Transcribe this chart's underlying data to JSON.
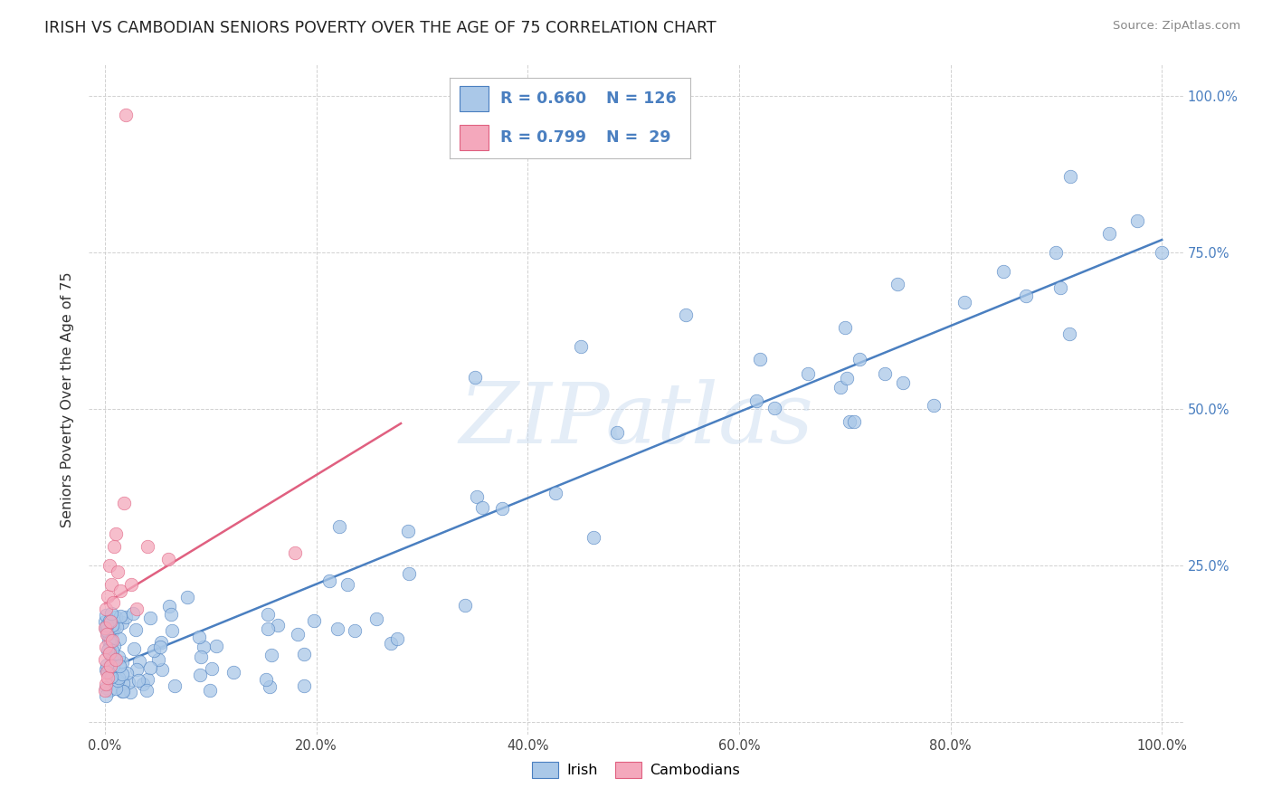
{
  "title": "IRISH VS CAMBODIAN SENIORS POVERTY OVER THE AGE OF 75 CORRELATION CHART",
  "source_text": "Source: ZipAtlas.com",
  "ylabel": "Seniors Poverty Over the Age of 75",
  "background_color": "#ffffff",
  "plot_bg_color": "#ffffff",
  "grid_color": "#cccccc",
  "irish_color": "#aac8e8",
  "cambodian_color": "#f4a8bc",
  "irish_line_color": "#4a7fc0",
  "cambodian_line_color": "#e06080",
  "irish_R": 0.66,
  "irish_N": 126,
  "cambodian_R": 0.799,
  "cambodian_N": 29,
  "watermark_text": "ZIPatlas",
  "legend_label_irish": "Irish",
  "legend_label_cambodian": "Cambodians",
  "xlim": [
    0.0,
    1.0
  ],
  "ylim": [
    0.0,
    1.0
  ],
  "x_ticks": [
    0.0,
    0.2,
    0.4,
    0.6,
    0.8,
    1.0
  ],
  "x_tick_labels": [
    "0.0%",
    "20.0%",
    "40.0%",
    "60.0%",
    "80.0%",
    "100.0%"
  ],
  "y_ticks": [
    0.0,
    0.25,
    0.5,
    0.75,
    1.0
  ],
  "y_tick_labels": [
    "",
    "25.0%",
    "50.0%",
    "75.0%",
    "100.0%"
  ]
}
